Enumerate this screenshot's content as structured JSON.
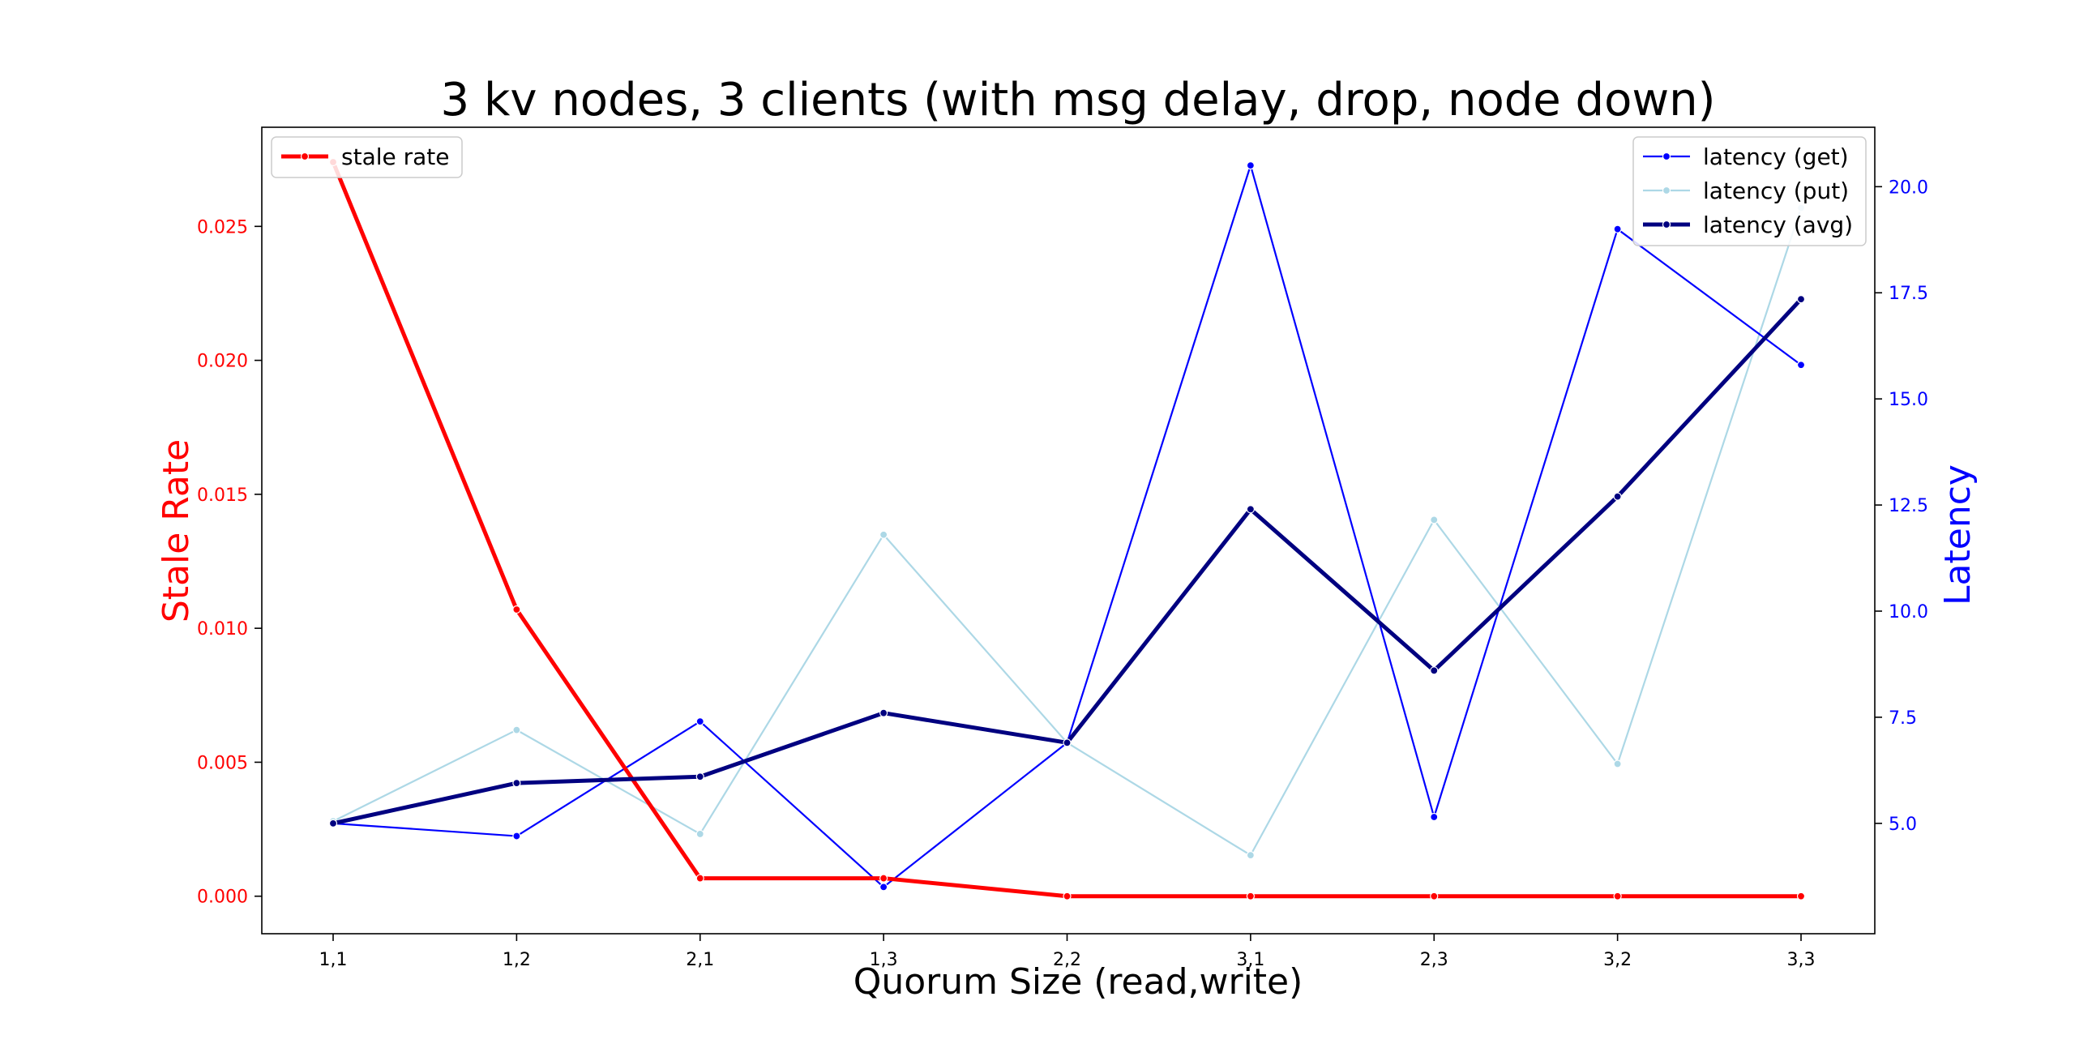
{
  "chart_data": {
    "type": "line",
    "title": "3 kv nodes, 3 clients (with msg delay, drop, node down)",
    "xlabel": "Quorum Size (read,write)",
    "ylabel_left": "Stale Rate",
    "ylabel_right": "Latency",
    "categories": [
      "1,1",
      "1,2",
      "2,1",
      "1,3",
      "2,2",
      "3,1",
      "2,3",
      "3,2",
      "3,3"
    ],
    "left_axis": {
      "ylim": [
        -0.0014,
        0.0287
      ],
      "ticks": [
        0.0,
        0.005,
        0.01,
        0.015,
        0.02,
        0.025
      ],
      "tick_labels": [
        "0.000",
        "0.005",
        "0.010",
        "0.015",
        "0.020",
        "0.025"
      ],
      "color": "#ff0000"
    },
    "right_axis": {
      "ylim": [
        2.4,
        21.4
      ],
      "ticks": [
        5.0,
        7.5,
        10.0,
        12.5,
        15.0,
        17.5,
        20.0
      ],
      "tick_labels": [
        "5.0",
        "7.5",
        "10.0",
        "12.5",
        "15.0",
        "17.5",
        "20.0"
      ],
      "color": "#0000ff"
    },
    "series": [
      {
        "name": "stale rate",
        "axis": "left",
        "color": "#ff0000",
        "line_width": 5,
        "values": [
          0.0274,
          0.0107,
          0.00067,
          0.00067,
          0.0,
          0.0,
          0.0,
          0.0,
          0.0
        ]
      },
      {
        "name": "latency (get)",
        "axis": "right",
        "color": "#0000ff",
        "line_width": 2.2,
        "values": [
          5.0,
          4.7,
          7.4,
          3.5,
          6.9,
          20.5,
          5.15,
          19.0,
          15.8
        ]
      },
      {
        "name": "latency (put)",
        "axis": "right",
        "color": "#add8e6",
        "line_width": 2.2,
        "values": [
          5.05,
          7.2,
          4.75,
          11.8,
          6.9,
          4.25,
          12.15,
          6.4,
          19.5
        ]
      },
      {
        "name": "latency (avg)",
        "axis": "right",
        "color": "#000080",
        "line_width": 5,
        "values": [
          5.0,
          5.95,
          6.1,
          7.6,
          6.9,
          12.4,
          8.6,
          12.7,
          17.35
        ]
      }
    ],
    "legends": [
      {
        "placement": "upper-left",
        "items": [
          "stale rate"
        ]
      },
      {
        "placement": "upper-right",
        "items": [
          "latency (get)",
          "latency (put)",
          "latency (avg)"
        ]
      }
    ],
    "grid": false
  }
}
